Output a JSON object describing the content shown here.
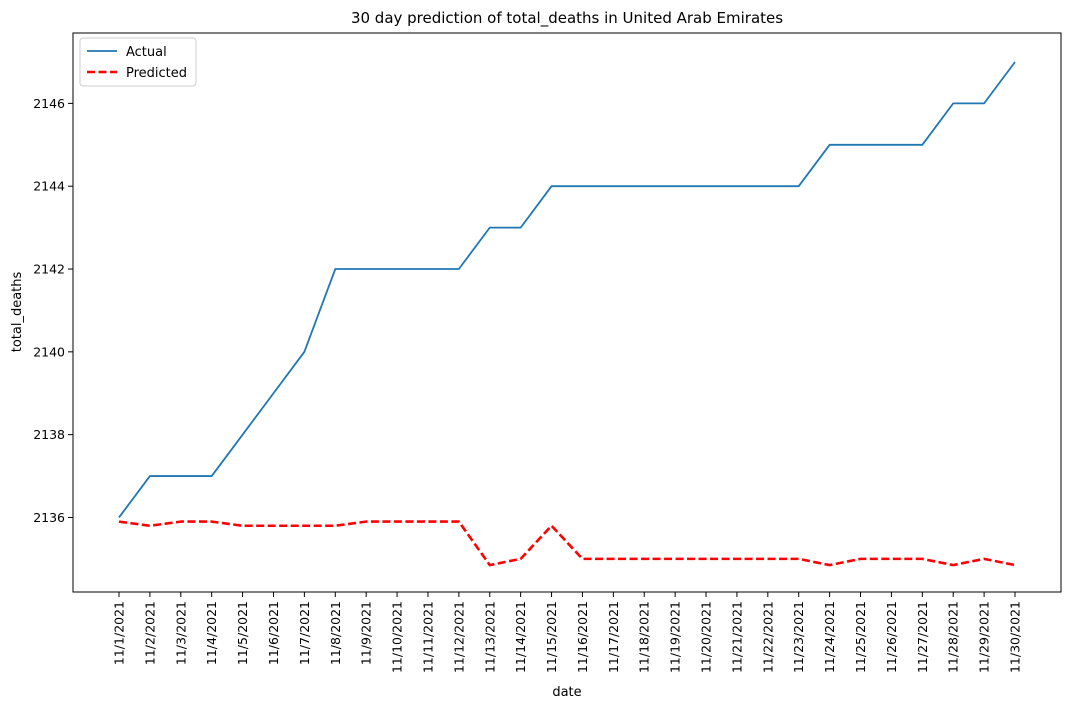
{
  "chart_data": {
    "type": "line",
    "title": "30 day prediction of total_deaths in United Arab Emirates",
    "xlabel": "date",
    "ylabel": "total_deaths",
    "x": [
      "11/1/2021",
      "11/2/2021",
      "11/3/2021",
      "11/4/2021",
      "11/5/2021",
      "11/6/2021",
      "11/7/2021",
      "11/8/2021",
      "11/9/2021",
      "11/10/2021",
      "11/11/2021",
      "11/12/2021",
      "11/13/2021",
      "11/14/2021",
      "11/15/2021",
      "11/16/2021",
      "11/17/2021",
      "11/18/2021",
      "11/19/2021",
      "11/20/2021",
      "11/21/2021",
      "11/22/2021",
      "11/23/2021",
      "11/24/2021",
      "11/25/2021",
      "11/26/2021",
      "11/27/2021",
      "11/28/2021",
      "11/29/2021",
      "11/30/2021"
    ],
    "ylim": [
      2134.2,
      2147.7
    ],
    "yticks": [
      2136,
      2138,
      2140,
      2142,
      2144,
      2146
    ],
    "grid": false,
    "legend": "top-left",
    "series": [
      {
        "name": "Actual",
        "color": "#1f77b4",
        "style": "solid",
        "values": [
          2136,
          2137,
          2137,
          2137,
          2138,
          2139,
          2140,
          2142,
          2142,
          2142,
          2142,
          2142,
          2143,
          2143,
          2144,
          2144,
          2144,
          2144,
          2144,
          2144,
          2144,
          2144,
          2144,
          2145,
          2145,
          2145,
          2145,
          2146,
          2146,
          2147
        ]
      },
      {
        "name": "Predicted",
        "color": "#ff0000",
        "style": "dashed",
        "values": [
          2135.9,
          2135.8,
          2135.9,
          2135.9,
          2135.8,
          2135.8,
          2135.8,
          2135.8,
          2135.9,
          2135.9,
          2135.9,
          2135.9,
          2134.85,
          2135.0,
          2135.8,
          2135.0,
          2135.0,
          2135.0,
          2135.0,
          2135.0,
          2135.0,
          2135.0,
          2135.0,
          2134.85,
          2135.0,
          2135.0,
          2135.0,
          2134.85,
          2135.0,
          2134.85
        ]
      }
    ]
  }
}
